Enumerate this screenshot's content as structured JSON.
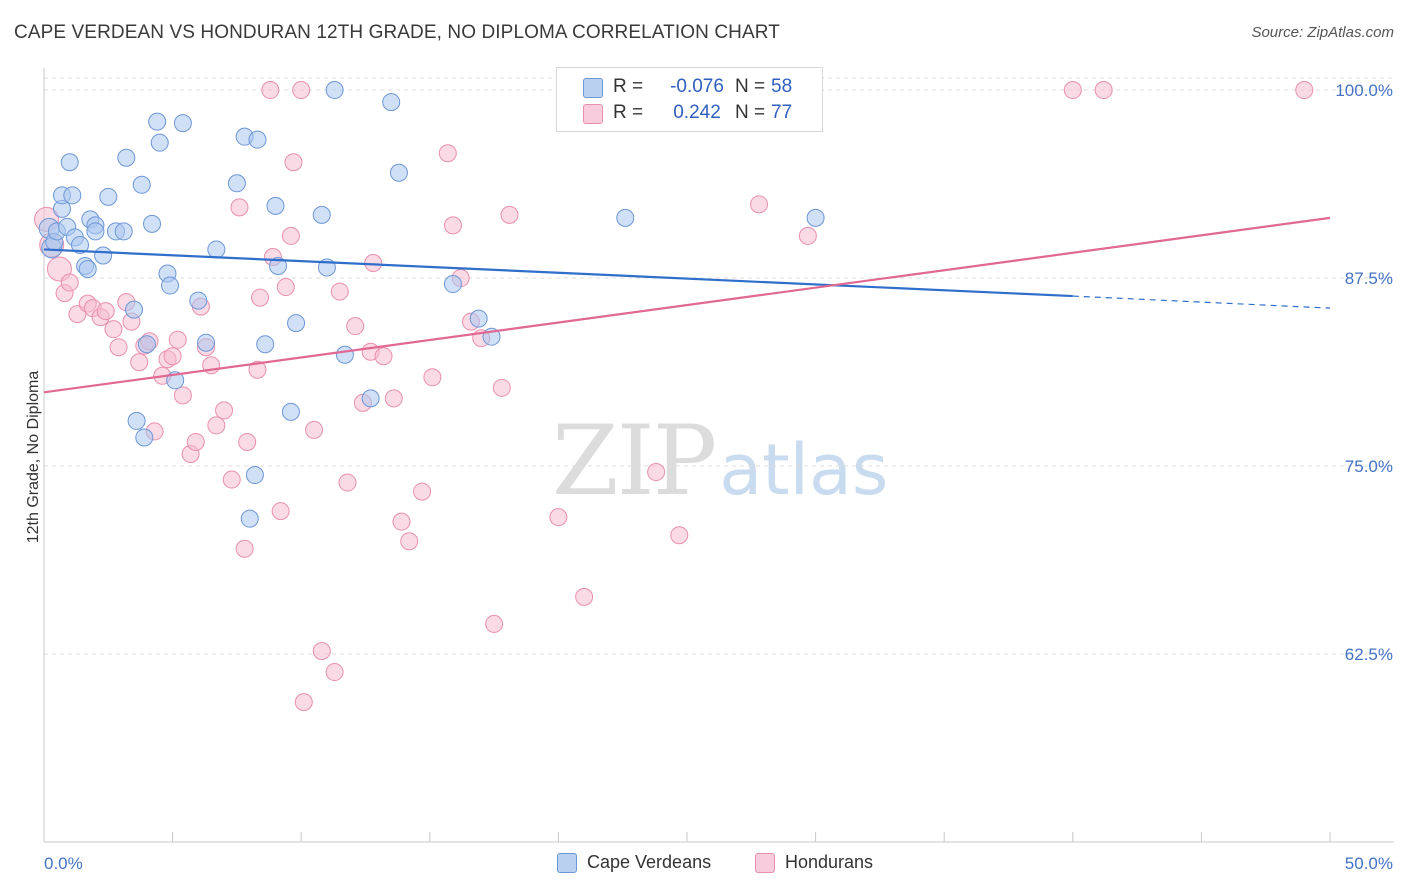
{
  "title": "CAPE VERDEAN VS HONDURAN 12TH GRADE, NO DIPLOMA CORRELATION CHART",
  "source": "Source: ZipAtlas.com",
  "watermark": {
    "zip": "ZIP",
    "atlas": "atlas"
  },
  "legend": {
    "rows": [
      {
        "r_label": "R =",
        "r_value": "-0.076",
        "n_label": "N =",
        "n_value": "58"
      },
      {
        "r_label": "R =",
        "r_value": "0.242",
        "n_label": "N =",
        "n_value": "77"
      }
    ]
  },
  "bottom_legend": {
    "series1": "Cape Verdeans",
    "series2": "Hondurans"
  },
  "colors": {
    "blue_fill": "#a9c6ee",
    "blue_stroke": "#6d97d6",
    "blue_line": "#2f6fcb",
    "pink_fill": "#f6bcd0",
    "pink_stroke": "#e890ae",
    "pink_line": "#e06892",
    "grid": "#dcdcdc",
    "tick_label": "#4472c4"
  },
  "chart_data": {
    "type": "scatter",
    "title": "CAPE VERDEAN VS HONDURAN 12TH GRADE, NO DIPLOMA CORRELATION CHART",
    "xlabel": "",
    "ylabel": "12th Grade, No Diploma",
    "xlim": [
      0,
      50
    ],
    "ylim": [
      50,
      101.2
    ],
    "x_tick_labels": [
      "0.0%",
      "50.0%"
    ],
    "y_ticks": [
      62.5,
      75.0,
      87.5,
      100.0
    ],
    "y_tick_labels": [
      "62.5%",
      "75.0%",
      "87.5%",
      "100.0%"
    ],
    "grid": true,
    "legend_position": "top-center",
    "series": [
      {
        "name": "Cape Verdeans",
        "color": "#a9c6ee",
        "r": -0.076,
        "n": 58,
        "trend": {
          "x": [
            0,
            40
          ],
          "y": [
            89.4,
            86.3
          ],
          "dashed_to": [
            50,
            85.5
          ]
        },
        "points": [
          [
            0.2,
            90.8
          ],
          [
            0.3,
            89.5
          ],
          [
            0.4,
            89.9
          ],
          [
            0.5,
            90.6
          ],
          [
            0.7,
            92.1
          ],
          [
            0.7,
            93.0
          ],
          [
            0.9,
            90.9
          ],
          [
            1.0,
            95.2
          ],
          [
            1.2,
            90.2
          ],
          [
            1.4,
            89.7
          ],
          [
            1.6,
            88.3
          ],
          [
            1.7,
            88.1
          ],
          [
            1.8,
            91.4
          ],
          [
            2.0,
            91.0
          ],
          [
            2.0,
            90.6
          ],
          [
            2.3,
            89.0
          ],
          [
            2.5,
            92.9
          ],
          [
            2.8,
            90.6
          ],
          [
            3.1,
            90.6
          ],
          [
            3.2,
            95.5
          ],
          [
            3.5,
            85.4
          ],
          [
            3.6,
            78.0
          ],
          [
            3.9,
            76.9
          ],
          [
            4.0,
            83.1
          ],
          [
            3.8,
            93.7
          ],
          [
            4.2,
            91.1
          ],
          [
            4.4,
            97.9
          ],
          [
            4.5,
            96.5
          ],
          [
            4.8,
            87.8
          ],
          [
            4.9,
            87.0
          ],
          [
            5.1,
            80.7
          ],
          [
            5.4,
            97.8
          ],
          [
            6.0,
            86.0
          ],
          [
            6.3,
            83.2
          ],
          [
            6.7,
            89.4
          ],
          [
            7.5,
            93.8
          ],
          [
            7.8,
            96.9
          ],
          [
            8.0,
            71.5
          ],
          [
            8.2,
            74.4
          ],
          [
            8.3,
            96.7
          ],
          [
            8.6,
            83.1
          ],
          [
            9.0,
            92.3
          ],
          [
            9.1,
            88.3
          ],
          [
            9.6,
            78.6
          ],
          [
            9.8,
            84.5
          ],
          [
            10.8,
            91.7
          ],
          [
            11.0,
            88.2
          ],
          [
            11.3,
            100.0
          ],
          [
            11.7,
            82.4
          ],
          [
            12.7,
            79.5
          ],
          [
            13.5,
            99.2
          ],
          [
            13.8,
            94.5
          ],
          [
            15.9,
            87.1
          ],
          [
            16.9,
            84.8
          ],
          [
            17.4,
            83.6
          ],
          [
            22.6,
            91.5
          ],
          [
            30.0,
            91.5
          ],
          [
            1.1,
            93.0
          ]
        ]
      },
      {
        "name": "Hondurans",
        "color": "#f6bcd0",
        "r": 0.242,
        "n": 77,
        "trend": {
          "x": [
            0,
            50
          ],
          "y": [
            79.9,
            91.5
          ]
        },
        "points": [
          [
            0.1,
            91.4
          ],
          [
            0.3,
            89.7
          ],
          [
            0.6,
            88.1
          ],
          [
            0.8,
            86.5
          ],
          [
            1.0,
            87.2
          ],
          [
            1.3,
            85.1
          ],
          [
            1.7,
            85.8
          ],
          [
            1.9,
            85.5
          ],
          [
            2.2,
            84.9
          ],
          [
            2.4,
            85.3
          ],
          [
            2.7,
            84.1
          ],
          [
            2.9,
            82.9
          ],
          [
            3.2,
            85.9
          ],
          [
            3.4,
            84.6
          ],
          [
            3.7,
            81.9
          ],
          [
            3.9,
            83.0
          ],
          [
            4.1,
            83.3
          ],
          [
            4.3,
            77.3
          ],
          [
            4.6,
            81.0
          ],
          [
            4.8,
            82.1
          ],
          [
            5.0,
            82.3
          ],
          [
            5.2,
            83.4
          ],
          [
            5.4,
            79.7
          ],
          [
            5.7,
            75.8
          ],
          [
            5.9,
            76.6
          ],
          [
            6.1,
            85.6
          ],
          [
            6.3,
            82.9
          ],
          [
            6.5,
            81.7
          ],
          [
            6.7,
            77.7
          ],
          [
            7.0,
            78.7
          ],
          [
            7.3,
            74.1
          ],
          [
            7.6,
            92.2
          ],
          [
            7.8,
            69.5
          ],
          [
            7.9,
            76.6
          ],
          [
            8.3,
            81.4
          ],
          [
            8.4,
            86.2
          ],
          [
            8.9,
            88.9
          ],
          [
            9.2,
            72.0
          ],
          [
            9.4,
            86.9
          ],
          [
            9.6,
            90.3
          ],
          [
            9.7,
            95.2
          ],
          [
            10.1,
            59.3
          ],
          [
            10.5,
            77.4
          ],
          [
            10.8,
            62.7
          ],
          [
            11.3,
            61.3
          ],
          [
            11.5,
            86.6
          ],
          [
            11.8,
            73.9
          ],
          [
            12.1,
            84.3
          ],
          [
            12.4,
            79.2
          ],
          [
            12.7,
            82.6
          ],
          [
            12.8,
            88.5
          ],
          [
            13.2,
            82.3
          ],
          [
            13.6,
            79.5
          ],
          [
            13.9,
            71.3
          ],
          [
            14.2,
            70.0
          ],
          [
            14.7,
            73.3
          ],
          [
            15.1,
            80.9
          ],
          [
            15.7,
            95.8
          ],
          [
            15.9,
            91.0
          ],
          [
            16.2,
            87.5
          ],
          [
            16.6,
            84.6
          ],
          [
            17.0,
            83.5
          ],
          [
            17.5,
            64.5
          ],
          [
            17.8,
            80.2
          ],
          [
            18.1,
            91.7
          ],
          [
            20.0,
            71.6
          ],
          [
            21.0,
            66.3
          ],
          [
            23.8,
            74.6
          ],
          [
            24.7,
            70.4
          ],
          [
            27.8,
            92.4
          ],
          [
            28.0,
            100.0
          ],
          [
            29.7,
            90.3
          ],
          [
            10.0,
            100.0
          ],
          [
            8.8,
            100.0
          ],
          [
            40.0,
            100.0
          ],
          [
            41.2,
            100.0
          ],
          [
            49.0,
            100.0
          ]
        ]
      }
    ]
  }
}
